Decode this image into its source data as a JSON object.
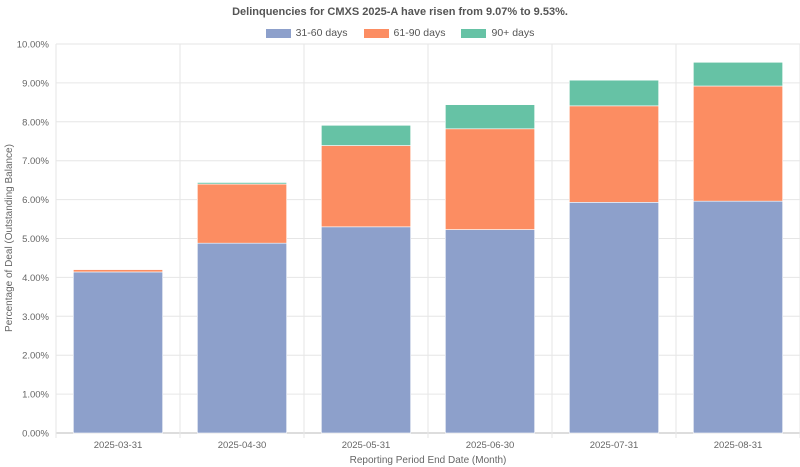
{
  "chart_data": {
    "type": "bar",
    "stacked": true,
    "title": "Delinquencies for CMXS 2025-A have risen from 9.07% to 9.53%.",
    "xlabel": "Reporting Period End Date (Month)",
    "ylabel": "Percentage of Deal (Outstanding Balance)",
    "ylim": [
      0,
      10
    ],
    "yticks": [
      "0.00%",
      "1.00%",
      "2.00%",
      "3.00%",
      "4.00%",
      "5.00%",
      "6.00%",
      "7.00%",
      "8.00%",
      "9.00%",
      "10.00%"
    ],
    "categories": [
      "2025-03-31",
      "2025-04-30",
      "2025-05-31",
      "2025-06-30",
      "2025-07-31",
      "2025-08-31"
    ],
    "series": [
      {
        "name": "31-60 days",
        "color": "#8da0cb",
        "values": [
          4.14,
          4.88,
          5.3,
          5.23,
          5.93,
          5.96
        ]
      },
      {
        "name": "61-90 days",
        "color": "#fc8d62",
        "values": [
          0.06,
          1.52,
          2.09,
          2.59,
          2.48,
          2.96
        ]
      },
      {
        "name": "90+ days",
        "color": "#66c2a5",
        "values": [
          0.0,
          0.04,
          0.52,
          0.62,
          0.66,
          0.61
        ]
      }
    ],
    "legend_position": "top",
    "grid": true
  }
}
